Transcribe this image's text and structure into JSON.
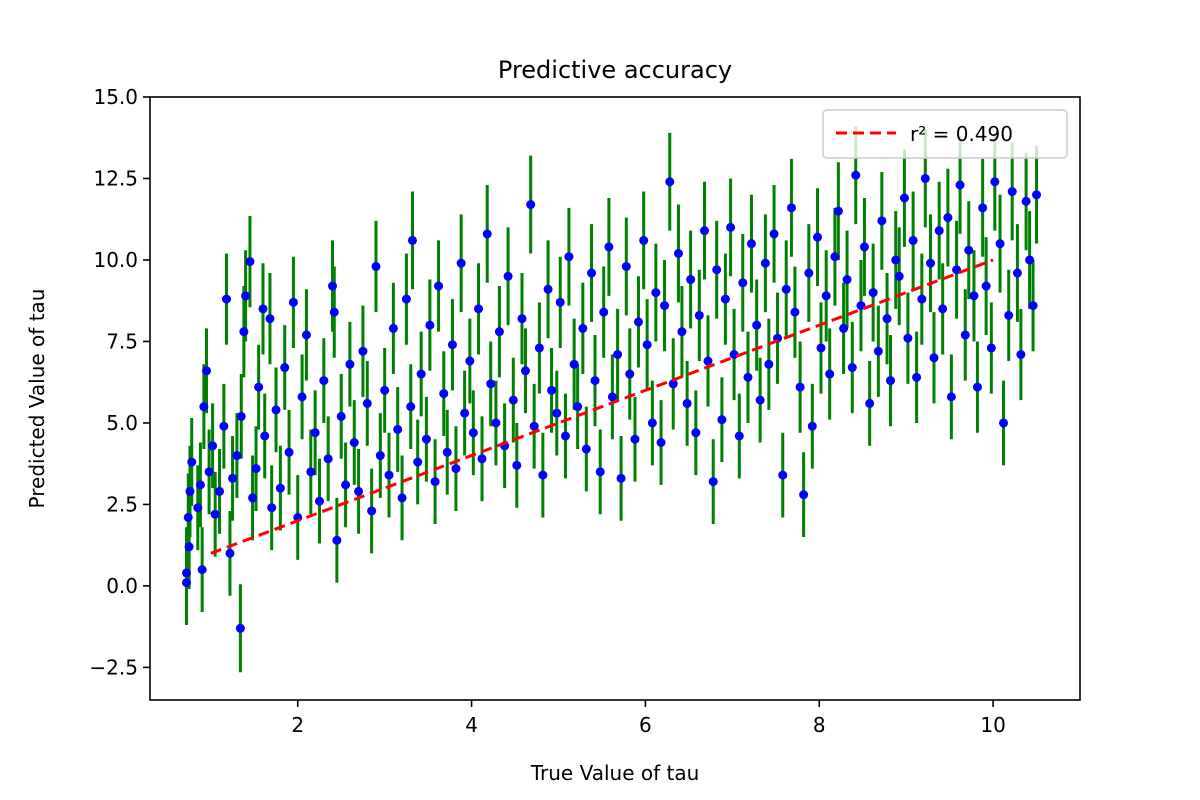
{
  "chart_data": {
    "type": "scatter",
    "title": "Predictive accuracy",
    "xlabel": "True Value of tau",
    "ylabel": "Predicted Value of tau",
    "xlim": [
      0.3,
      11.0
    ],
    "ylim": [
      -3.5,
      15.0
    ],
    "x_ticks": [
      2,
      4,
      6,
      8,
      10
    ],
    "x_tick_labels": [
      "2",
      "4",
      "6",
      "8",
      "10"
    ],
    "y_ticks": [
      -2.5,
      0.0,
      2.5,
      5.0,
      7.5,
      10.0,
      12.5,
      15.0
    ],
    "y_tick_labels": [
      "−2.5",
      "0.0",
      "2.5",
      "5.0",
      "7.5",
      "10.0",
      "12.5",
      "15.0"
    ],
    "grid": false,
    "legend": {
      "placement": "top-right",
      "entries": [
        {
          "label": "r² = 0.490",
          "color": "#ff0000",
          "style": "dashed"
        }
      ]
    },
    "colors": {
      "points": "#0000ff",
      "error_bars": "#008000",
      "fit_line": "#ff0000"
    },
    "fit_line": {
      "x": [
        1.0,
        10.0
      ],
      "y": [
        1.0,
        10.0
      ]
    },
    "series": [
      {
        "kind": "points_with_error_bars",
        "points": [
          [
            0.72,
            0.1,
            1.3
          ],
          [
            0.72,
            0.4,
            1.4
          ],
          [
            0.75,
            1.2,
            1.3
          ],
          [
            0.74,
            2.1,
            1.35
          ],
          [
            0.76,
            2.9,
            1.4
          ],
          [
            0.78,
            3.8,
            1.35
          ],
          [
            0.85,
            2.4,
            1.3
          ],
          [
            0.88,
            3.1,
            1.3
          ],
          [
            0.9,
            0.5,
            1.3
          ],
          [
            0.92,
            5.5,
            1.3
          ],
          [
            0.95,
            6.6,
            1.3
          ],
          [
            0.98,
            3.5,
            1.3
          ],
          [
            1.02,
            4.3,
            1.3
          ],
          [
            1.05,
            2.2,
            1.3
          ],
          [
            1.1,
            2.9,
            1.3
          ],
          [
            1.15,
            4.9,
            1.3
          ],
          [
            1.18,
            8.8,
            1.4
          ],
          [
            1.22,
            1.0,
            1.3
          ],
          [
            1.25,
            3.3,
            1.3
          ],
          [
            1.3,
            4.0,
            1.3
          ],
          [
            1.35,
            5.2,
            1.3
          ],
          [
            1.34,
            -1.3,
            1.35
          ],
          [
            1.38,
            7.8,
            1.4
          ],
          [
            1.4,
            8.9,
            1.4
          ],
          [
            1.45,
            9.95,
            1.4
          ],
          [
            1.48,
            2.7,
            1.3
          ],
          [
            1.52,
            3.6,
            1.3
          ],
          [
            1.55,
            6.1,
            1.3
          ],
          [
            1.6,
            8.5,
            1.4
          ],
          [
            1.62,
            4.6,
            1.3
          ],
          [
            1.68,
            8.2,
            1.4
          ],
          [
            1.7,
            2.4,
            1.3
          ],
          [
            1.75,
            5.4,
            1.3
          ],
          [
            1.8,
            3.0,
            1.3
          ],
          [
            1.85,
            6.7,
            1.3
          ],
          [
            1.9,
            4.1,
            1.3
          ],
          [
            1.95,
            8.7,
            1.4
          ],
          [
            2.0,
            2.1,
            1.3
          ],
          [
            2.05,
            5.8,
            1.3
          ],
          [
            2.1,
            7.7,
            1.4
          ],
          [
            2.15,
            3.5,
            1.3
          ],
          [
            2.2,
            4.7,
            1.3
          ],
          [
            2.25,
            2.6,
            1.3
          ],
          [
            2.3,
            6.3,
            1.3
          ],
          [
            2.35,
            3.9,
            1.3
          ],
          [
            2.4,
            9.2,
            1.4
          ],
          [
            2.42,
            8.4,
            1.4
          ],
          [
            2.45,
            1.4,
            1.3
          ],
          [
            2.5,
            5.2,
            1.3
          ],
          [
            2.55,
            3.1,
            1.3
          ],
          [
            2.6,
            6.8,
            1.3
          ],
          [
            2.65,
            4.4,
            1.3
          ],
          [
            2.7,
            2.9,
            1.3
          ],
          [
            2.75,
            7.2,
            1.4
          ],
          [
            2.8,
            5.6,
            1.3
          ],
          [
            2.85,
            2.3,
            1.3
          ],
          [
            2.9,
            9.8,
            1.4
          ],
          [
            2.95,
            4.0,
            1.3
          ],
          [
            3.0,
            6.0,
            1.3
          ],
          [
            3.05,
            3.4,
            1.3
          ],
          [
            3.1,
            7.9,
            1.4
          ],
          [
            3.15,
            4.8,
            1.3
          ],
          [
            3.2,
            2.7,
            1.3
          ],
          [
            3.25,
            8.8,
            1.4
          ],
          [
            3.3,
            5.5,
            1.3
          ],
          [
            3.32,
            10.6,
            1.5
          ],
          [
            3.38,
            3.8,
            1.3
          ],
          [
            3.42,
            6.5,
            1.3
          ],
          [
            3.48,
            4.5,
            1.3
          ],
          [
            3.52,
            8.0,
            1.4
          ],
          [
            3.58,
            3.2,
            1.3
          ],
          [
            3.62,
            9.2,
            1.4
          ],
          [
            3.68,
            5.9,
            1.3
          ],
          [
            3.72,
            4.1,
            1.3
          ],
          [
            3.78,
            7.4,
            1.4
          ],
          [
            3.82,
            3.6,
            1.3
          ],
          [
            3.88,
            9.9,
            1.5
          ],
          [
            3.92,
            5.3,
            1.3
          ],
          [
            3.98,
            6.9,
            1.3
          ],
          [
            4.02,
            4.7,
            1.3
          ],
          [
            4.08,
            8.5,
            1.4
          ],
          [
            4.12,
            3.9,
            1.3
          ],
          [
            4.18,
            10.8,
            1.5
          ],
          [
            4.22,
            6.2,
            1.3
          ],
          [
            4.28,
            5.0,
            1.3
          ],
          [
            4.32,
            7.8,
            1.4
          ],
          [
            4.38,
            4.3,
            1.3
          ],
          [
            4.42,
            9.5,
            1.5
          ],
          [
            4.48,
            5.7,
            1.3
          ],
          [
            4.52,
            3.7,
            1.3
          ],
          [
            4.58,
            8.2,
            1.4
          ],
          [
            4.62,
            6.6,
            1.3
          ],
          [
            4.68,
            11.7,
            1.5
          ],
          [
            4.72,
            4.9,
            1.3
          ],
          [
            4.78,
            7.3,
            1.4
          ],
          [
            4.82,
            3.4,
            1.3
          ],
          [
            4.88,
            9.1,
            1.5
          ],
          [
            4.92,
            6.0,
            1.3
          ],
          [
            4.98,
            5.3,
            1.3
          ],
          [
            5.02,
            8.7,
            1.4
          ],
          [
            5.08,
            4.6,
            1.3
          ],
          [
            5.12,
            10.1,
            1.5
          ],
          [
            5.18,
            6.8,
            1.4
          ],
          [
            5.22,
            5.5,
            1.3
          ],
          [
            5.28,
            7.9,
            1.4
          ],
          [
            5.32,
            4.2,
            1.3
          ],
          [
            5.38,
            9.6,
            1.5
          ],
          [
            5.42,
            6.3,
            1.4
          ],
          [
            5.48,
            3.5,
            1.3
          ],
          [
            5.52,
            8.4,
            1.4
          ],
          [
            5.58,
            10.4,
            1.5
          ],
          [
            5.62,
            5.8,
            1.3
          ],
          [
            5.68,
            7.1,
            1.4
          ],
          [
            5.72,
            3.3,
            1.3
          ],
          [
            5.78,
            9.8,
            1.5
          ],
          [
            5.82,
            6.5,
            1.4
          ],
          [
            5.88,
            4.5,
            1.3
          ],
          [
            5.92,
            8.1,
            1.4
          ],
          [
            5.98,
            10.6,
            1.5
          ],
          [
            6.02,
            7.4,
            1.4
          ],
          [
            6.08,
            5.0,
            1.3
          ],
          [
            6.12,
            9.0,
            1.5
          ],
          [
            6.18,
            4.4,
            1.3
          ],
          [
            6.22,
            8.6,
            1.4
          ],
          [
            6.28,
            12.4,
            1.5
          ],
          [
            6.32,
            6.2,
            1.4
          ],
          [
            6.38,
            10.2,
            1.5
          ],
          [
            6.42,
            7.8,
            1.4
          ],
          [
            6.48,
            5.6,
            1.3
          ],
          [
            6.52,
            9.4,
            1.5
          ],
          [
            6.58,
            4.7,
            1.3
          ],
          [
            6.62,
            8.3,
            1.4
          ],
          [
            6.68,
            10.9,
            1.5
          ],
          [
            6.72,
            6.9,
            1.4
          ],
          [
            6.78,
            3.2,
            1.3
          ],
          [
            6.82,
            9.7,
            1.5
          ],
          [
            6.88,
            5.1,
            1.3
          ],
          [
            6.92,
            8.8,
            1.4
          ],
          [
            6.98,
            11.0,
            1.5
          ],
          [
            7.02,
            7.1,
            1.4
          ],
          [
            7.08,
            4.6,
            1.3
          ],
          [
            7.12,
            9.3,
            1.5
          ],
          [
            7.18,
            6.4,
            1.4
          ],
          [
            7.22,
            10.5,
            1.5
          ],
          [
            7.28,
            8.0,
            1.4
          ],
          [
            7.32,
            5.7,
            1.3
          ],
          [
            7.38,
            9.9,
            1.5
          ],
          [
            7.42,
            6.8,
            1.4
          ],
          [
            7.48,
            10.8,
            1.5
          ],
          [
            7.52,
            7.6,
            1.4
          ],
          [
            7.58,
            3.4,
            1.3
          ],
          [
            7.62,
            9.1,
            1.5
          ],
          [
            7.68,
            11.6,
            1.5
          ],
          [
            7.72,
            8.4,
            1.4
          ],
          [
            7.78,
            6.1,
            1.4
          ],
          [
            7.82,
            2.8,
            1.3
          ],
          [
            7.88,
            9.6,
            1.5
          ],
          [
            7.92,
            4.9,
            1.3
          ],
          [
            7.98,
            10.7,
            1.5
          ],
          [
            8.02,
            7.3,
            1.4
          ],
          [
            8.08,
            8.9,
            1.4
          ],
          [
            8.12,
            6.5,
            1.4
          ],
          [
            8.18,
            10.1,
            1.5
          ],
          [
            8.22,
            11.5,
            1.5
          ],
          [
            8.28,
            7.9,
            1.4
          ],
          [
            8.32,
            9.4,
            1.5
          ],
          [
            8.38,
            6.7,
            1.4
          ],
          [
            8.42,
            12.6,
            1.5
          ],
          [
            8.48,
            8.6,
            1.4
          ],
          [
            8.52,
            10.4,
            1.5
          ],
          [
            8.58,
            5.6,
            1.3
          ],
          [
            8.62,
            9.0,
            1.5
          ],
          [
            8.68,
            7.2,
            1.4
          ],
          [
            8.72,
            11.2,
            1.5
          ],
          [
            8.78,
            8.2,
            1.4
          ],
          [
            8.82,
            6.3,
            1.4
          ],
          [
            8.88,
            10.0,
            1.5
          ],
          [
            8.92,
            9.5,
            1.5
          ],
          [
            8.98,
            11.9,
            1.5
          ],
          [
            9.02,
            7.6,
            1.4
          ],
          [
            9.08,
            10.6,
            1.5
          ],
          [
            9.12,
            6.4,
            1.4
          ],
          [
            9.18,
            8.8,
            1.4
          ],
          [
            9.22,
            12.5,
            1.5
          ],
          [
            9.28,
            9.9,
            1.5
          ],
          [
            9.32,
            7.0,
            1.4
          ],
          [
            9.38,
            10.9,
            1.5
          ],
          [
            9.42,
            8.5,
            1.4
          ],
          [
            9.48,
            11.3,
            1.5
          ],
          [
            9.52,
            5.8,
            1.3
          ],
          [
            9.58,
            9.7,
            1.5
          ],
          [
            9.62,
            12.3,
            1.5
          ],
          [
            9.68,
            7.7,
            1.4
          ],
          [
            9.72,
            10.3,
            1.5
          ],
          [
            9.78,
            8.9,
            1.4
          ],
          [
            9.82,
            6.1,
            1.4
          ],
          [
            9.88,
            11.6,
            1.5
          ],
          [
            9.92,
            9.2,
            1.5
          ],
          [
            9.98,
            7.3,
            1.4
          ],
          [
            10.02,
            12.4,
            1.5
          ],
          [
            10.08,
            10.5,
            1.5
          ],
          [
            10.12,
            5.0,
            1.3
          ],
          [
            10.18,
            8.3,
            1.4
          ],
          [
            10.22,
            12.1,
            1.5
          ],
          [
            10.28,
            9.6,
            1.5
          ],
          [
            10.32,
            7.1,
            1.4
          ],
          [
            10.38,
            11.8,
            1.5
          ],
          [
            10.42,
            10.0,
            1.5
          ],
          [
            10.46,
            8.6,
            1.4
          ],
          [
            10.5,
            12.0,
            1.5
          ]
        ]
      }
    ]
  }
}
